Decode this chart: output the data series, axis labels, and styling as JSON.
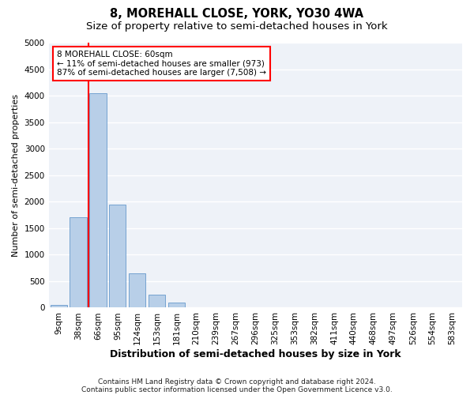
{
  "title": "8, MOREHALL CLOSE, YORK, YO30 4WA",
  "subtitle": "Size of property relative to semi-detached houses in York",
  "xlabel": "Distribution of semi-detached houses by size in York",
  "ylabel": "Number of semi-detached properties",
  "categories": [
    "9sqm",
    "38sqm",
    "66sqm",
    "95sqm",
    "124sqm",
    "153sqm",
    "181sqm",
    "210sqm",
    "239sqm",
    "267sqm",
    "296sqm",
    "325sqm",
    "353sqm",
    "382sqm",
    "411sqm",
    "440sqm",
    "468sqm",
    "497sqm",
    "526sqm",
    "554sqm",
    "583sqm"
  ],
  "values": [
    50,
    1700,
    4050,
    1950,
    650,
    250,
    100,
    0,
    0,
    0,
    0,
    0,
    0,
    0,
    0,
    0,
    0,
    0,
    0,
    0,
    0
  ],
  "bar_color": "#b8cfe8",
  "bar_edgecolor": "#6699cc",
  "vline_pos": 1.5,
  "annotation_text": "8 MOREHALL CLOSE: 60sqm\n← 11% of semi-detached houses are smaller (973)\n87% of semi-detached houses are larger (7,508) →",
  "annotation_box_color": "white",
  "annotation_box_edgecolor": "red",
  "vline_color": "red",
  "ylim": [
    0,
    5000
  ],
  "yticks": [
    0,
    500,
    1000,
    1500,
    2000,
    2500,
    3000,
    3500,
    4000,
    4500,
    5000
  ],
  "footnote1": "Contains HM Land Registry data © Crown copyright and database right 2024.",
  "footnote2": "Contains public sector information licensed under the Open Government Licence v3.0.",
  "background_color": "#eef2f8",
  "grid_color": "white",
  "title_fontsize": 10.5,
  "subtitle_fontsize": 9.5,
  "xlabel_fontsize": 9,
  "ylabel_fontsize": 8,
  "footnote_fontsize": 6.5,
  "tick_fontsize": 7.5,
  "annotation_fontsize": 7.5
}
